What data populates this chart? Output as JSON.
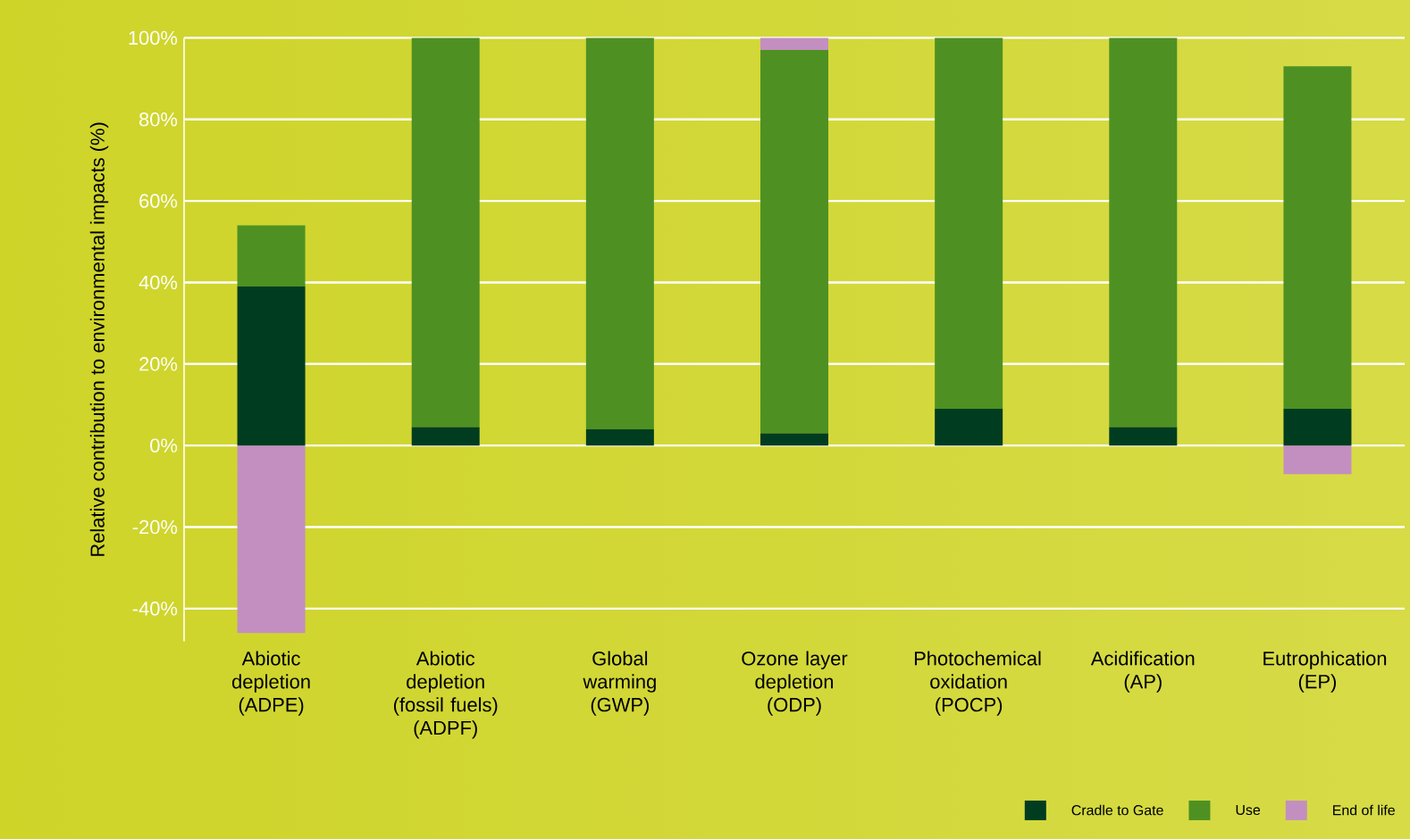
{
  "chart_data": {
    "type": "bar",
    "stacked": true,
    "ylabel": "Relative contribution to environmental impacts (%)",
    "categories": [
      "Abiotic depletion (ADPE)",
      "Abiotic depletion (fossil fuels) (ADPF)",
      "Global warming (GWP)",
      "Ozone layer depletion (ODP)",
      "Photochemical oxidation (POCP)",
      "Acidification (AP)",
      "Eutrophication (EP)"
    ],
    "series": [
      {
        "name": "Cradle to Gate",
        "color": "#003d20",
        "values": [
          39,
          4.5,
          4,
          3,
          9,
          4.5,
          9
        ]
      },
      {
        "name": "Use",
        "color": "#4e9122",
        "values": [
          15,
          95.5,
          96,
          94,
          91,
          95.5,
          84
        ]
      },
      {
        "name": "End of life",
        "color": "#c38fc0",
        "values": [
          -46,
          null,
          null,
          3,
          null,
          null,
          -7
        ]
      }
    ],
    "ylim": [
      -48,
      100
    ],
    "yticks": [
      {
        "value": -40,
        "label": "-40%"
      },
      {
        "value": -20,
        "label": "-20%"
      },
      {
        "value": 0,
        "label": "0%"
      },
      {
        "value": 20,
        "label": "20%"
      },
      {
        "value": 40,
        "label": "40%"
      },
      {
        "value": 60,
        "label": "60%"
      },
      {
        "value": 80,
        "label": "80%"
      },
      {
        "value": 100,
        "label": "100%"
      }
    ],
    "grid": "y",
    "legend": "bottom right"
  }
}
